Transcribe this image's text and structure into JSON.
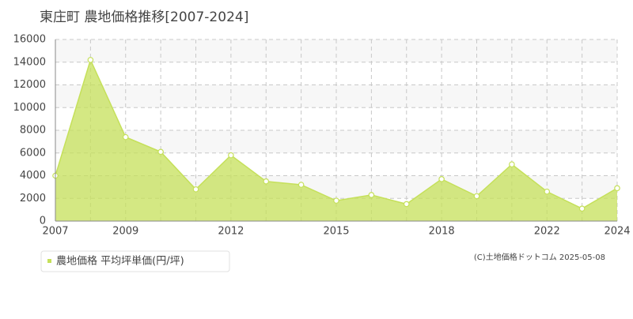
{
  "chart_data": {
    "type": "area",
    "title": "東庄町 農地価格推移[2007-2024]",
    "categories": [
      "2007",
      null,
      "2009",
      null,
      null,
      "2012",
      null,
      null,
      "2015",
      null,
      null,
      "2018",
      null,
      null,
      "2022",
      null,
      "2024"
    ],
    "series": [
      {
        "name": "農地価格 平均坪単価(円/坪)",
        "color": "#c5e05a",
        "values": [
          4000,
          14200,
          7400,
          6100,
          2800,
          5800,
          3500,
          3200,
          1800,
          2300,
          1500,
          3700,
          2200,
          5000,
          2600,
          1100,
          2900
        ]
      }
    ],
    "ylim": [
      0,
      16000
    ],
    "yticks": [
      0,
      2000,
      4000,
      6000,
      8000,
      10000,
      12000,
      14000,
      16000
    ],
    "grid": true,
    "legend": "bottom-left",
    "footer": "(C)土地価格ドットコム 2025-05-08"
  }
}
